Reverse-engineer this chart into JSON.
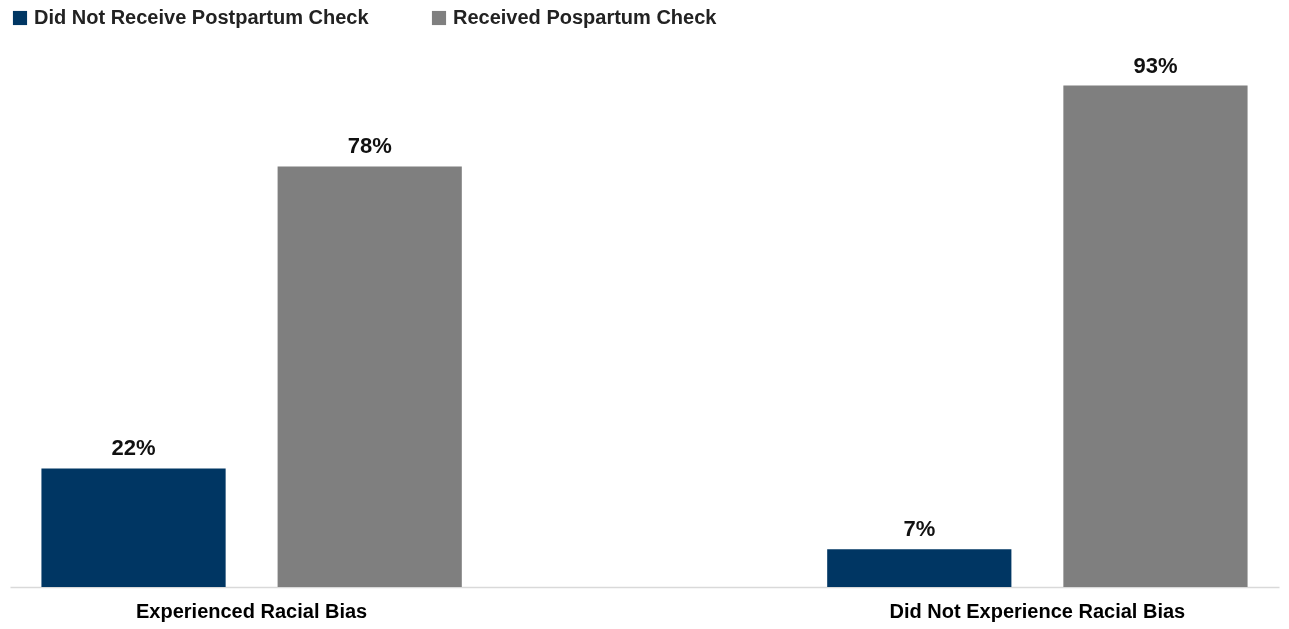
{
  "chart_data": {
    "type": "bar",
    "categories": [
      "Experienced Racial Bias",
      "Did Not Experience Racial Bias"
    ],
    "series": [
      {
        "name": "Did Not Receive Postpartum Check",
        "color": "#003663",
        "values": [
          22,
          7
        ],
        "value_labels": [
          "22%",
          "7%"
        ]
      },
      {
        "name": "Received Pospartum Check",
        "color": "#7f7f7f",
        "values": [
          78,
          93
        ],
        "value_labels": [
          "78%",
          "93%"
        ]
      }
    ],
    "legend": "top",
    "grid": false
  }
}
